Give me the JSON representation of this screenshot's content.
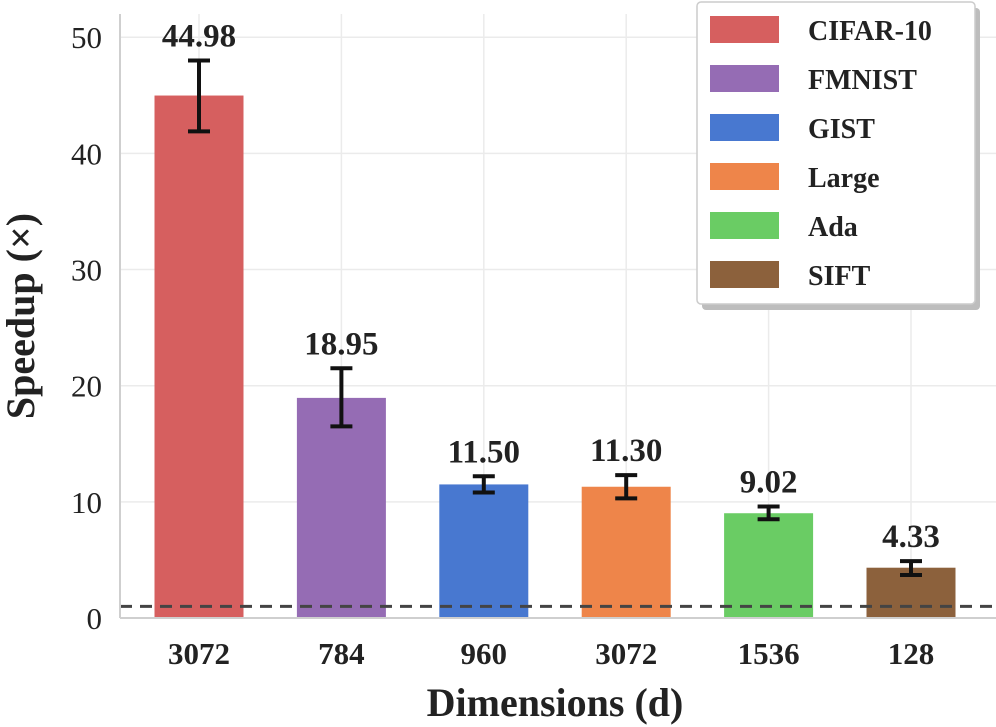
{
  "chart_data": {
    "type": "bar",
    "title": "",
    "xlabel": "Dimensions (d)",
    "ylabel": "Speedup (×)",
    "ylim": [
      0,
      52
    ],
    "yticks": [
      0,
      10,
      20,
      30,
      40,
      50
    ],
    "grid": true,
    "legend_position": "top-right",
    "baseline": 1.0,
    "categories": [
      "3072",
      "784",
      "960",
      "3072",
      "1536",
      "128"
    ],
    "series": [
      {
        "name": "CIFAR-10",
        "value": 44.98,
        "value_label": "44.98",
        "err_low": 41.9,
        "err_high": 48.0,
        "color": "#d65f5f"
      },
      {
        "name": "FMNIST",
        "value": 18.95,
        "value_label": "18.95",
        "err_low": 16.5,
        "err_high": 21.5,
        "color": "#956cb4"
      },
      {
        "name": "GIST",
        "value": 11.5,
        "value_label": "11.50",
        "err_low": 10.8,
        "err_high": 12.2,
        "color": "#4878d0"
      },
      {
        "name": "Large",
        "value": 11.3,
        "value_label": "11.30",
        "err_low": 10.3,
        "err_high": 12.3,
        "color": "#ee854a"
      },
      {
        "name": "Ada",
        "value": 9.02,
        "value_label": "9.02",
        "err_low": 8.5,
        "err_high": 9.6,
        "color": "#6acc64"
      },
      {
        "name": "SIFT",
        "value": 4.33,
        "value_label": "4.33",
        "err_low": 3.7,
        "err_high": 4.9,
        "color": "#8c613c"
      }
    ]
  }
}
